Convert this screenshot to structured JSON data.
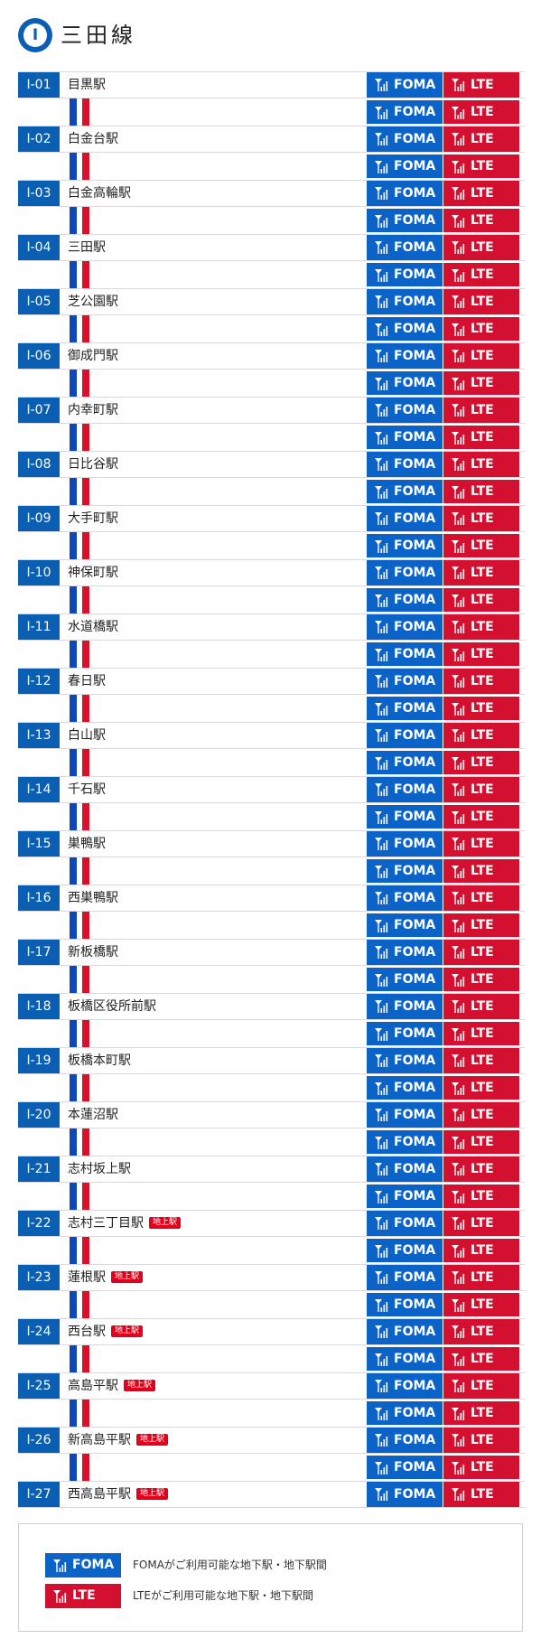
{
  "line": {
    "letter": "I",
    "title": "三田線"
  },
  "signal": {
    "foma_label": "FOMA",
    "lte_label": "LTE"
  },
  "stations": [
    {
      "code": "I-01",
      "name": "目黒駅",
      "badge": ""
    },
    {
      "code": "I-02",
      "name": "白金台駅",
      "badge": ""
    },
    {
      "code": "I-03",
      "name": "白金高輪駅",
      "badge": ""
    },
    {
      "code": "I-04",
      "name": "三田駅",
      "badge": ""
    },
    {
      "code": "I-05",
      "name": "芝公園駅",
      "badge": ""
    },
    {
      "code": "I-06",
      "name": "御成門駅",
      "badge": ""
    },
    {
      "code": "I-07",
      "name": "内幸町駅",
      "badge": ""
    },
    {
      "code": "I-08",
      "name": "日比谷駅",
      "badge": ""
    },
    {
      "code": "I-09",
      "name": "大手町駅",
      "badge": ""
    },
    {
      "code": "I-10",
      "name": "神保町駅",
      "badge": ""
    },
    {
      "code": "I-11",
      "name": "水道橋駅",
      "badge": ""
    },
    {
      "code": "I-12",
      "name": "春日駅",
      "badge": ""
    },
    {
      "code": "I-13",
      "name": "白山駅",
      "badge": ""
    },
    {
      "code": "I-14",
      "name": "千石駅",
      "badge": ""
    },
    {
      "code": "I-15",
      "name": "巣鴨駅",
      "badge": ""
    },
    {
      "code": "I-16",
      "name": "西巣鴨駅",
      "badge": ""
    },
    {
      "code": "I-17",
      "name": "新板橋駅",
      "badge": ""
    },
    {
      "code": "I-18",
      "name": "板橋区役所前駅",
      "badge": ""
    },
    {
      "code": "I-19",
      "name": "板橋本町駅",
      "badge": ""
    },
    {
      "code": "I-20",
      "name": "本蓮沼駅",
      "badge": ""
    },
    {
      "code": "I-21",
      "name": "志村坂上駅",
      "badge": ""
    },
    {
      "code": "I-22",
      "name": "志村三丁目駅",
      "badge": "地上駅"
    },
    {
      "code": "I-23",
      "name": "蓮根駅",
      "badge": "地上駅"
    },
    {
      "code": "I-24",
      "name": "西台駅",
      "badge": "地上駅"
    },
    {
      "code": "I-25",
      "name": "高島平駅",
      "badge": "地上駅"
    },
    {
      "code": "I-26",
      "name": "新高島平駅",
      "badge": "地上駅"
    },
    {
      "code": "I-27",
      "name": "西高島平駅",
      "badge": "地上駅"
    }
  ],
  "legend": {
    "foma_desc": "FOMAがご利用可能な地下駅・地下駅間",
    "lte_desc": "LTEがご利用可能な地下駅・地下駅間"
  },
  "colors": {
    "line_blue": "#0b5fb3",
    "foma": "#0b63c8",
    "lte": "#d3102f",
    "ground_badge": "#e2001a"
  }
}
